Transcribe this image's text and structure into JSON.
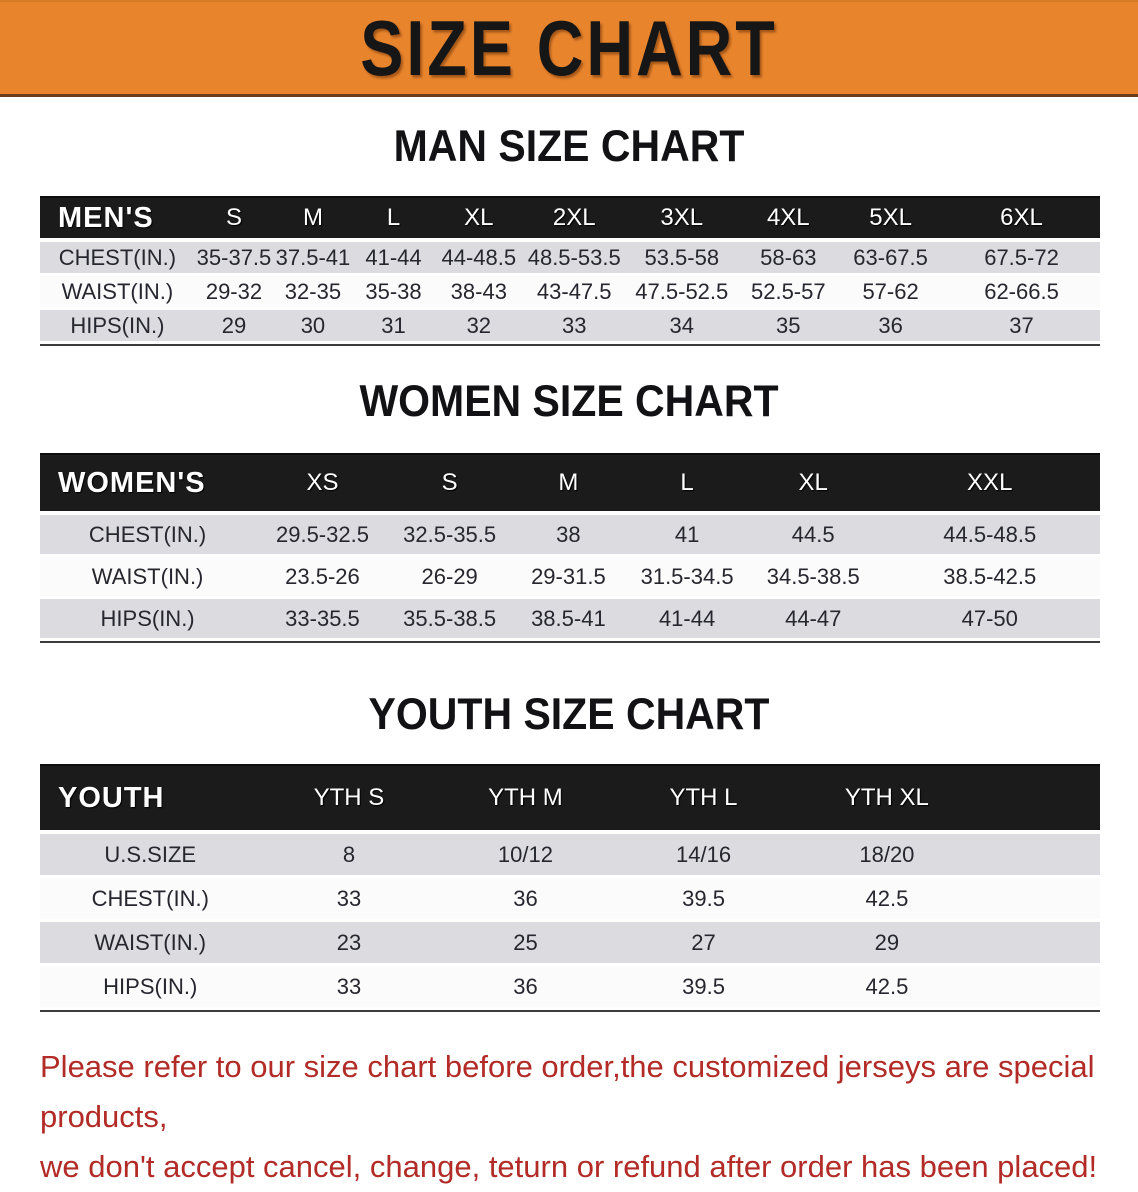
{
  "banner": {
    "title": "SIZE CHART",
    "background_color": "#e8842c",
    "text_color": "#161616"
  },
  "sections": [
    {
      "id": "men",
      "heading": "MAN SIZE CHART",
      "table": {
        "group_label": "MEN'S",
        "columns": [
          "S",
          "M",
          "L",
          "XL",
          "2XL",
          "3XL",
          "4XL",
          "5XL",
          "6XL"
        ],
        "rows": [
          {
            "label": "CHEST(IN.)",
            "values": [
              "35-37.5",
              "37.5-41",
              "41-44",
              "44-48.5",
              "48.5-53.5",
              "53.5-58",
              "58-63",
              "63-67.5",
              "67.5-72"
            ]
          },
          {
            "label": "WAIST(IN.)",
            "values": [
              "29-32",
              "32-35",
              "35-38",
              "38-43",
              "43-47.5",
              "47.5-52.5",
              "52.5-57",
              "57-62",
              "62-66.5"
            ]
          },
          {
            "label": "HIPS(IN.)",
            "values": [
              "29",
              "30",
              "31",
              "32",
              "33",
              "34",
              "35",
              "36",
              "37"
            ]
          }
        ]
      }
    },
    {
      "id": "women",
      "heading": "WOMEN SIZE CHART",
      "table": {
        "group_label": "WOMEN'S",
        "columns": [
          "XS",
          "S",
          "M",
          "L",
          "XL",
          "XXL"
        ],
        "rows": [
          {
            "label": "CHEST(IN.)",
            "values": [
              "29.5-32.5",
              "32.5-35.5",
              "38",
              "41",
              "44.5",
              "44.5-48.5"
            ]
          },
          {
            "label": "WAIST(IN.)",
            "values": [
              "23.5-26",
              "26-29",
              "29-31.5",
              "31.5-34.5",
              "34.5-38.5",
              "38.5-42.5"
            ]
          },
          {
            "label": "HIPS(IN.)",
            "values": [
              "33-35.5",
              "35.5-38.5",
              "38.5-41",
              "41-44",
              "44-47",
              "47-50"
            ]
          }
        ]
      }
    },
    {
      "id": "youth",
      "heading": "YOUTH SIZE CHART",
      "table": {
        "group_label": "YOUTH",
        "columns": [
          "YTH S",
          "YTH M",
          "YTH L",
          "YTH XL"
        ],
        "rows": [
          {
            "label": "U.S.SIZE",
            "values": [
              "8",
              "10/12",
              "14/16",
              "18/20"
            ]
          },
          {
            "label": "CHEST(IN.)",
            "values": [
              "33",
              "36",
              "39.5",
              "42.5"
            ]
          },
          {
            "label": "WAIST(IN.)",
            "values": [
              "23",
              "25",
              "27",
              "29"
            ]
          },
          {
            "label": "HIPS(IN.)",
            "values": [
              "33",
              "36",
              "39.5",
              "42.5"
            ]
          }
        ]
      }
    }
  ],
  "footer": {
    "line1": "Please refer to our size chart before order,the customized jerseys are special products,",
    "line2": "we don't accept cancel, change, teturn or refund after order has been placed!",
    "text_color": "#b22b27"
  }
}
